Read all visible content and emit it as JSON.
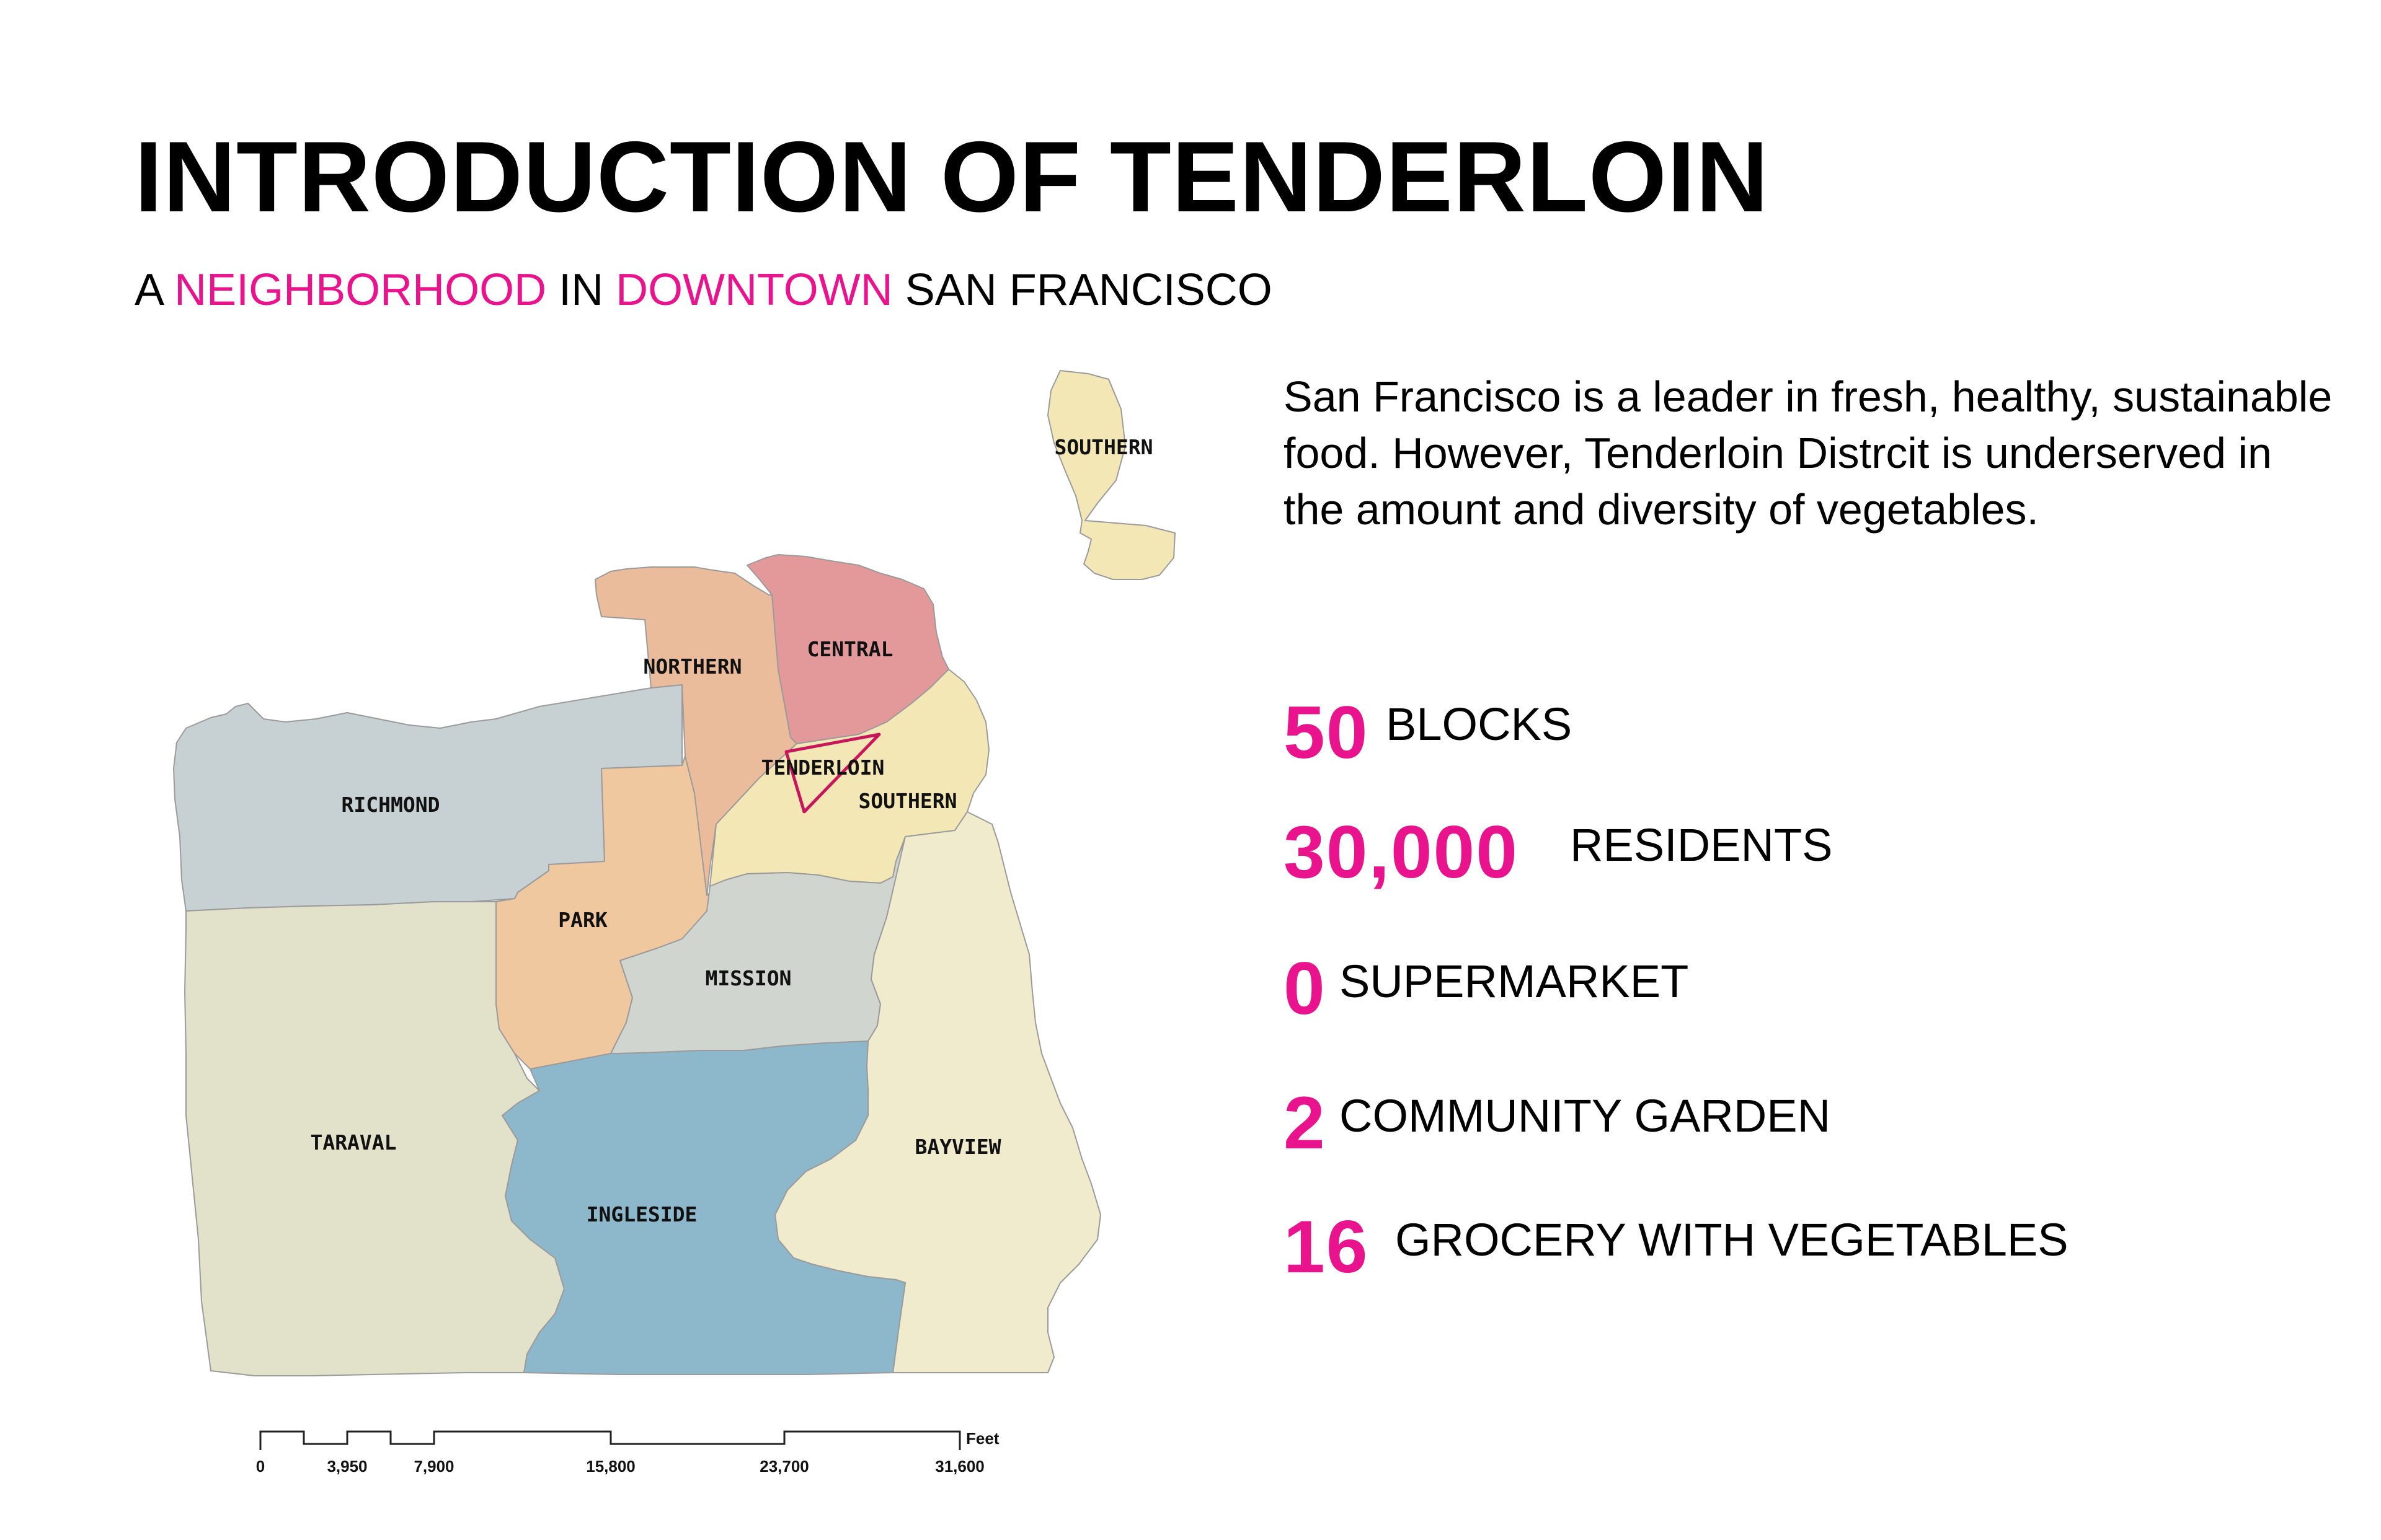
{
  "title": "INTRODUCTION OF TENDERLOIN",
  "subtitle": {
    "part1": "A ",
    "part2": "NEIGHBORHOOD",
    "part3": " IN ",
    "part4": "DOWNTOWN",
    "part5": " SAN FRANCISCO"
  },
  "description": "San Francisco is a leader in fresh, healthy, sustainable food. However, Tenderloin Distrcit is underserved in the amount and diversity of vegetables.",
  "accent_color": "#e8138d",
  "stats": [
    {
      "number": "50",
      "label": "BLOCKS"
    },
    {
      "number": "30,000",
      "label": "RESIDENTS"
    },
    {
      "number": "0",
      "label": "SUPERMARKET"
    },
    {
      "number": "2",
      "label": "COMMUNITY GARDEN"
    },
    {
      "number": "16",
      "label": "GROCERY WITH VEGETABLES"
    }
  ],
  "map": {
    "regions": [
      {
        "name": "RICHMOND",
        "color": "#c7d0d3"
      },
      {
        "name": "NORTHERN",
        "color": "#ebbc9c"
      },
      {
        "name": "CENTRAL",
        "color": "#e3989a"
      },
      {
        "name": "TENDERLOIN",
        "color": "#f3e7b6",
        "outline": "#c8165c"
      },
      {
        "name": "SOUTHERN",
        "color": "#f3e7b6"
      },
      {
        "name": "SOUTHERN",
        "color": "#f3e7b6"
      },
      {
        "name": "PARK",
        "color": "#f0c89f"
      },
      {
        "name": "MISSION",
        "color": "#d0d5d0"
      },
      {
        "name": "TARAVAL",
        "color": "#e2e2ca"
      },
      {
        "name": "INGLESIDE",
        "color": "#8db7ca"
      },
      {
        "name": "BAYVIEW",
        "color": "#efebcc"
      }
    ],
    "scale": {
      "unit": "Feet",
      "ticks": [
        "0",
        "3,950",
        "7,900",
        "15,800",
        "23,700",
        "31,600"
      ]
    }
  }
}
